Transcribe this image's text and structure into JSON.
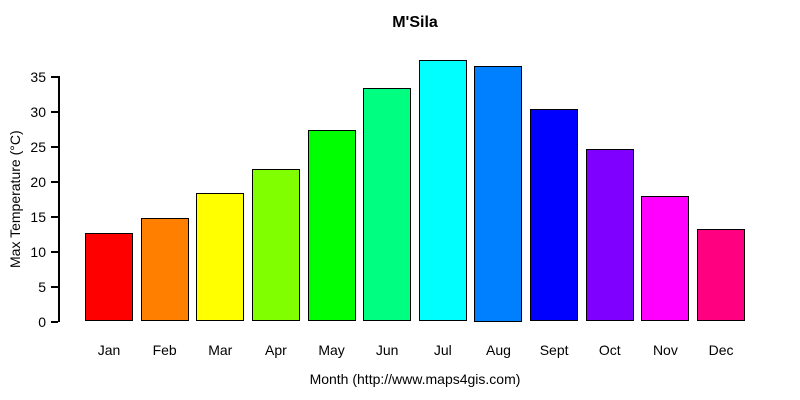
{
  "chart_data": {
    "type": "bar",
    "title": "M'Sila",
    "categories": [
      "Jan",
      "Feb",
      "Mar",
      "Apr",
      "May",
      "Jun",
      "Jul",
      "Aug",
      "Sept",
      "Oct",
      "Nov",
      "Dec"
    ],
    "values": [
      12.7,
      14.8,
      18.4,
      21.8,
      27.3,
      33.4,
      37.4,
      36.5,
      30.3,
      24.7,
      17.9,
      13.2
    ],
    "bar_colors": [
      "#FF0000",
      "#FF8000",
      "#FFFF00",
      "#80FF00",
      "#00FF00",
      "#00FF80",
      "#00FFFF",
      "#0080FF",
      "#0000FF",
      "#8000FF",
      "#FF00FF",
      "#FF0080"
    ],
    "bar_border_color": "#000000",
    "xlabel": "Month (http://www.maps4gis.com)",
    "ylabel": "Max Temperature (°C)",
    "yticks": [
      0,
      5,
      10,
      15,
      20,
      25,
      30,
      35
    ],
    "ylim": [
      0,
      37.4
    ],
    "grid": false,
    "legend": "none",
    "background_color": "#FFFFFF",
    "text_color": "#000000"
  }
}
